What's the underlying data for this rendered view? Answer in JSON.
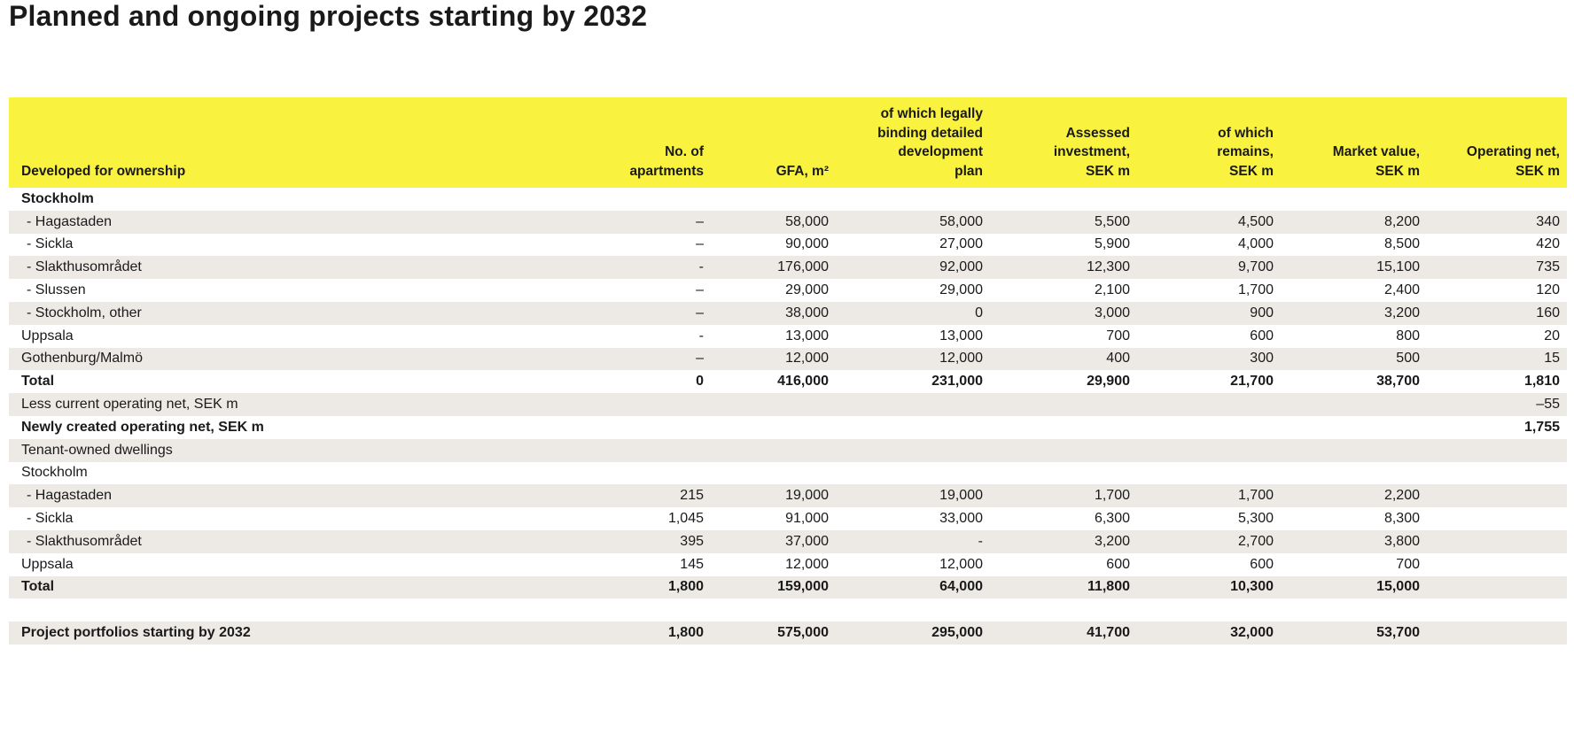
{
  "page_title": "Planned and ongoing projects starting by 2032",
  "colors": {
    "header_bg": "#f9f23f",
    "row_alt_bg": "#edeae6",
    "text": "#1a1a1a"
  },
  "table": {
    "columns": [
      {
        "key": "developed-for-ownership",
        "label": "Developed for ownership"
      },
      {
        "key": "no-of-apartments",
        "label": "No. of\napartments"
      },
      {
        "key": "gfa-m2",
        "label": "GFA, m²"
      },
      {
        "key": "legally-binding-plan",
        "label": "of which legally\nbinding detailed\ndevelopment\nplan"
      },
      {
        "key": "assessed-investment",
        "label": "Assessed\ninvestment,\nSEK m"
      },
      {
        "key": "of-which-remains",
        "label": "of which\nremains,\nSEK m"
      },
      {
        "key": "market-value",
        "label": "Market value,\nSEK m"
      },
      {
        "key": "operating-net",
        "label": "Operating net,\nSEK m"
      }
    ],
    "rows": [
      {
        "label": "Stockholm",
        "bold": true,
        "shaded": false,
        "indent": false,
        "values": [
          "",
          "",
          "",
          "",
          "",
          "",
          ""
        ]
      },
      {
        "label": "- Hagastaden",
        "bold": false,
        "shaded": true,
        "indent": true,
        "values": [
          "–",
          "58,000",
          "58,000",
          "5,500",
          "4,500",
          "8,200",
          "340"
        ]
      },
      {
        "label": "- Sickla",
        "bold": false,
        "shaded": false,
        "indent": true,
        "values": [
          "–",
          "90,000",
          "27,000",
          "5,900",
          "4,000",
          "8,500",
          "420"
        ]
      },
      {
        "label": "- Slakthusområdet",
        "bold": false,
        "shaded": true,
        "indent": true,
        "values": [
          "-",
          "176,000",
          "92,000",
          "12,300",
          "9,700",
          "15,100",
          "735"
        ]
      },
      {
        "label": "- Slussen",
        "bold": false,
        "shaded": false,
        "indent": true,
        "values": [
          "–",
          "29,000",
          "29,000",
          "2,100",
          "1,700",
          "2,400",
          "120"
        ]
      },
      {
        "label": "- Stockholm, other",
        "bold": false,
        "shaded": true,
        "indent": true,
        "values": [
          "–",
          "38,000",
          "0",
          "3,000",
          "900",
          "3,200",
          "160"
        ]
      },
      {
        "label": "Uppsala",
        "bold": false,
        "shaded": false,
        "indent": false,
        "values": [
          "-",
          "13,000",
          "13,000",
          "700",
          "600",
          "800",
          "20"
        ]
      },
      {
        "label": "Gothenburg/Malmö",
        "bold": false,
        "shaded": true,
        "indent": false,
        "values": [
          "–",
          "12,000",
          "12,000",
          "400",
          "300",
          "500",
          "15"
        ]
      },
      {
        "label": "Total",
        "bold": true,
        "shaded": false,
        "indent": false,
        "values": [
          "0",
          "416,000",
          "231,000",
          "29,900",
          "21,700",
          "38,700",
          "1,810"
        ]
      },
      {
        "label": "Less current operating net, SEK m",
        "bold": false,
        "shaded": true,
        "indent": false,
        "values": [
          "",
          "",
          "",
          "",
          "",
          "",
          "–55"
        ]
      },
      {
        "label": "Newly created operating net, SEK m",
        "bold": true,
        "shaded": false,
        "indent": false,
        "values": [
          "",
          "",
          "",
          "",
          "",
          "",
          "1,755"
        ]
      },
      {
        "label": "Tenant-owned dwellings",
        "bold": false,
        "shaded": true,
        "indent": false,
        "values": [
          "",
          "",
          "",
          "",
          "",
          "",
          ""
        ]
      },
      {
        "label": "Stockholm",
        "bold": false,
        "shaded": false,
        "indent": false,
        "values": [
          "",
          "",
          "",
          "",
          "",
          "",
          ""
        ]
      },
      {
        "label": "- Hagastaden",
        "bold": false,
        "shaded": true,
        "indent": true,
        "values": [
          "215",
          "19,000",
          "19,000",
          "1,700",
          "1,700",
          "2,200",
          ""
        ]
      },
      {
        "label": "- Sickla",
        "bold": false,
        "shaded": false,
        "indent": true,
        "values": [
          "1,045",
          "91,000",
          "33,000",
          "6,300",
          "5,300",
          "8,300",
          ""
        ]
      },
      {
        "label": "- Slakthusområdet",
        "bold": false,
        "shaded": true,
        "indent": true,
        "values": [
          "395",
          "37,000",
          "-",
          "3,200",
          "2,700",
          "3,800",
          ""
        ]
      },
      {
        "label": "Uppsala",
        "bold": false,
        "shaded": false,
        "indent": false,
        "values": [
          "145",
          "12,000",
          "12,000",
          "600",
          "600",
          "700",
          ""
        ]
      },
      {
        "label": "Total",
        "bold": true,
        "shaded": true,
        "indent": false,
        "values": [
          "1,800",
          "159,000",
          "64,000",
          "11,800",
          "10,300",
          "15,000",
          ""
        ]
      },
      {
        "label": "",
        "bold": false,
        "shaded": false,
        "indent": false,
        "values": [
          "",
          "",
          "",
          "",
          "",
          "",
          ""
        ]
      },
      {
        "label": "Project portfolios starting by 2032",
        "bold": true,
        "shaded": true,
        "indent": false,
        "values": [
          "1,800",
          "575,000",
          "295,000",
          "41,700",
          "32,000",
          "53,700",
          ""
        ]
      }
    ]
  }
}
